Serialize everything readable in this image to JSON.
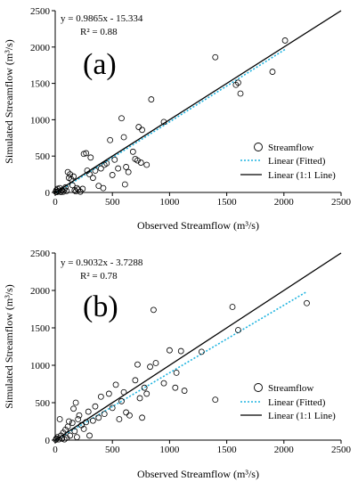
{
  "chart_data": [
    {
      "type": "scatter",
      "panel_label": "(a)",
      "equation": "y = 0.9865x - 15.334",
      "r2_text": "R² = 0.88",
      "xlabel": "Observed Streamflow (m³/s)",
      "ylabel": "Simulated Streamflow (m³/s)",
      "xlim": [
        0,
        2500
      ],
      "ylim": [
        0,
        2500
      ],
      "xticks": [
        "0",
        "500",
        "1000",
        "1500",
        "2000",
        "2500"
      ],
      "yticks": [
        "0",
        "500",
        "1000",
        "1500",
        "2000",
        "2500"
      ],
      "legend_position": "bottom-right",
      "series": [
        {
          "name": "Streamflow",
          "kind": "points",
          "color": "#000000",
          "points": [
            [
              5,
              10
            ],
            [
              10,
              30
            ],
            [
              15,
              5
            ],
            [
              20,
              50
            ],
            [
              30,
              15
            ],
            [
              40,
              60
            ],
            [
              50,
              5
            ],
            [
              60,
              30
            ],
            [
              70,
              10
            ],
            [
              80,
              40
            ],
            [
              90,
              70
            ],
            [
              100,
              20
            ],
            [
              110,
              280
            ],
            [
              120,
              200
            ],
            [
              130,
              250
            ],
            [
              140,
              180
            ],
            [
              150,
              100
            ],
            [
              160,
              220
            ],
            [
              170,
              30
            ],
            [
              180,
              15
            ],
            [
              190,
              60
            ],
            [
              200,
              40
            ],
            [
              220,
              10
            ],
            [
              240,
              50
            ],
            [
              250,
              530
            ],
            [
              270,
              540
            ],
            [
              280,
              300
            ],
            [
              300,
              250
            ],
            [
              310,
              480
            ],
            [
              330,
              200
            ],
            [
              350,
              300
            ],
            [
              380,
              90
            ],
            [
              400,
              330
            ],
            [
              420,
              60
            ],
            [
              430,
              380
            ],
            [
              450,
              400
            ],
            [
              480,
              720
            ],
            [
              500,
              240
            ],
            [
              520,
              450
            ],
            [
              550,
              330
            ],
            [
              580,
              1020
            ],
            [
              600,
              760
            ],
            [
              610,
              110
            ],
            [
              620,
              350
            ],
            [
              640,
              280
            ],
            [
              680,
              560
            ],
            [
              700,
              460
            ],
            [
              720,
              440
            ],
            [
              730,
              900
            ],
            [
              750,
              410
            ],
            [
              760,
              860
            ],
            [
              800,
              380
            ],
            [
              840,
              1280
            ],
            [
              950,
              970
            ],
            [
              1400,
              1860
            ],
            [
              1580,
              1480
            ],
            [
              1600,
              1510
            ],
            [
              1620,
              1360
            ],
            [
              1900,
              1660
            ],
            [
              2010,
              2090
            ]
          ]
        },
        {
          "name": "Linear (Fitted)",
          "kind": "line",
          "color": "#1fb4e0",
          "slope": 0.9865,
          "intercept": -15.334,
          "x_range": [
            0,
            2010
          ]
        },
        {
          "name": "Linear (1:1 Line)",
          "kind": "line",
          "color": "#000000",
          "slope": 1,
          "intercept": 0,
          "x_range": [
            0,
            2500
          ]
        }
      ]
    },
    {
      "type": "scatter",
      "panel_label": "(b)",
      "equation": "y = 0.9032x - 3.7288",
      "r2_text": "R² = 0.78",
      "xlabel": "Observed Streamflow (m³/s)",
      "ylabel": "Simulated Streamflow (m³/s)",
      "xlim": [
        0,
        2500
      ],
      "ylim": [
        0,
        2500
      ],
      "xticks": [
        "0",
        "500",
        "1000",
        "1500",
        "2000",
        "2500"
      ],
      "yticks": [
        "0",
        "500",
        "1000",
        "1500",
        "2000",
        "2500"
      ],
      "legend_position": "bottom-right",
      "series": [
        {
          "name": "Streamflow",
          "kind": "points",
          "color": "#000000",
          "points": [
            [
              5,
              5
            ],
            [
              10,
              20
            ],
            [
              20,
              40
            ],
            [
              30,
              10
            ],
            [
              40,
              280
            ],
            [
              50,
              60
            ],
            [
              60,
              20
            ],
            [
              70,
              100
            ],
            [
              80,
              10
            ],
            [
              90,
              140
            ],
            [
              100,
              30
            ],
            [
              110,
              180
            ],
            [
              120,
              250
            ],
            [
              130,
              60
            ],
            [
              150,
              230
            ],
            [
              160,
              420
            ],
            [
              170,
              120
            ],
            [
              180,
              500
            ],
            [
              190,
              40
            ],
            [
              200,
              280
            ],
            [
              210,
              330
            ],
            [
              230,
              200
            ],
            [
              250,
              150
            ],
            [
              270,
              240
            ],
            [
              290,
              380
            ],
            [
              300,
              60
            ],
            [
              330,
              260
            ],
            [
              350,
              450
            ],
            [
              380,
              300
            ],
            [
              400,
              580
            ],
            [
              430,
              350
            ],
            [
              470,
              620
            ],
            [
              500,
              430
            ],
            [
              530,
              740
            ],
            [
              560,
              280
            ],
            [
              580,
              520
            ],
            [
              600,
              640
            ],
            [
              620,
              370
            ],
            [
              650,
              330
            ],
            [
              700,
              800
            ],
            [
              720,
              1010
            ],
            [
              740,
              560
            ],
            [
              760,
              300
            ],
            [
              780,
              700
            ],
            [
              800,
              620
            ],
            [
              830,
              980
            ],
            [
              860,
              1740
            ],
            [
              880,
              1030
            ],
            [
              950,
              760
            ],
            [
              1000,
              1200
            ],
            [
              1050,
              700
            ],
            [
              1060,
              900
            ],
            [
              1100,
              1190
            ],
            [
              1130,
              660
            ],
            [
              1280,
              1180
            ],
            [
              1400,
              540
            ],
            [
              1550,
              1780
            ],
            [
              1600,
              1470
            ],
            [
              2200,
              1830
            ]
          ]
        },
        {
          "name": "Linear (Fitted)",
          "kind": "line",
          "color": "#1fb4e0",
          "slope": 0.9032,
          "intercept": -3.7288,
          "x_range": [
            0,
            2200
          ]
        },
        {
          "name": "Linear (1:1 Line)",
          "kind": "line",
          "color": "#000000",
          "slope": 1,
          "intercept": 0,
          "x_range": [
            0,
            2500
          ]
        }
      ]
    }
  ]
}
